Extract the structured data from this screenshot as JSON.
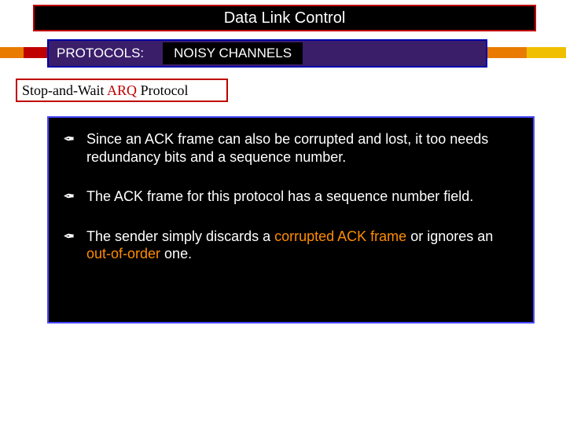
{
  "title": "Data Link Control",
  "subtitle": {
    "protocols_label": "PROTOCOLS:",
    "noisy_label": "NOISY CHANNELS"
  },
  "section": {
    "prefix": "Stop-and-Wait ",
    "highlight": "ARQ",
    "suffix": " Protocol"
  },
  "bullets": {
    "b1": {
      "t1": "Since an ACK frame can also be corrupted and lost, it too needs redundancy bits and a sequence number."
    },
    "b2": {
      "t1": "The ACK frame for this protocol has a sequence number field."
    },
    "b3": {
      "t1": "The sender simply discards a ",
      "h1": "corrupted ACK frame",
      "t2": " or ignores an ",
      "h2": "out-of-order",
      "t3": " one."
    }
  },
  "colors": {
    "accent_orange": "#e87b00",
    "accent_red": "#c00000",
    "accent_yellow": "#f0c000"
  }
}
